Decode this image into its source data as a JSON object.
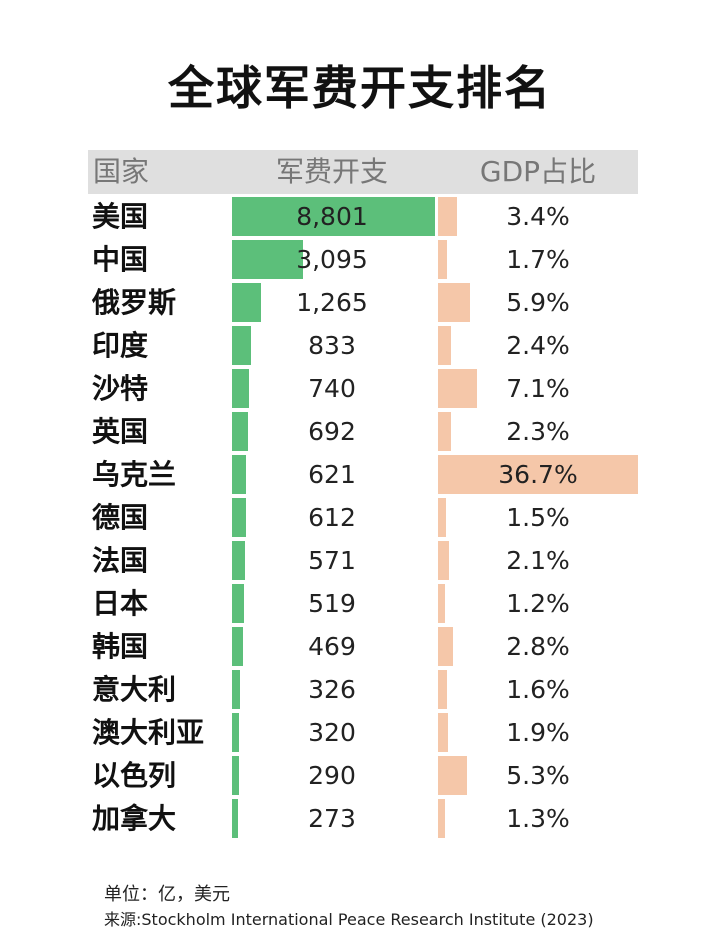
{
  "title": "全球军费开支排名",
  "chart_data": {
    "type": "table",
    "title": "全球军费开支排名",
    "columns": [
      "国家",
      "军费开支",
      "GDP占比"
    ],
    "rows": [
      {
        "country": "美国",
        "spend": 8801,
        "spend_label": "8,801",
        "gdp": 3.4,
        "gdp_label": "3.4%"
      },
      {
        "country": "中国",
        "spend": 3095,
        "spend_label": "3,095",
        "gdp": 1.7,
        "gdp_label": "1.7%"
      },
      {
        "country": "俄罗斯",
        "spend": 1265,
        "spend_label": "1,265",
        "gdp": 5.9,
        "gdp_label": "5.9%"
      },
      {
        "country": "印度",
        "spend": 833,
        "spend_label": "833",
        "gdp": 2.4,
        "gdp_label": "2.4%"
      },
      {
        "country": "沙特",
        "spend": 740,
        "spend_label": "740",
        "gdp": 7.1,
        "gdp_label": "7.1%"
      },
      {
        "country": "英国",
        "spend": 692,
        "spend_label": "692",
        "gdp": 2.3,
        "gdp_label": "2.3%"
      },
      {
        "country": "乌克兰",
        "spend": 621,
        "spend_label": "621",
        "gdp": 36.7,
        "gdp_label": "36.7%"
      },
      {
        "country": "德国",
        "spend": 612,
        "spend_label": "612",
        "gdp": 1.5,
        "gdp_label": "1.5%"
      },
      {
        "country": "法国",
        "spend": 571,
        "spend_label": "571",
        "gdp": 2.1,
        "gdp_label": "2.1%"
      },
      {
        "country": "日本",
        "spend": 519,
        "spend_label": "519",
        "gdp": 1.2,
        "gdp_label": "1.2%"
      },
      {
        "country": "韩国",
        "spend": 469,
        "spend_label": "469",
        "gdp": 2.8,
        "gdp_label": "2.8%"
      },
      {
        "country": "意大利",
        "spend": 326,
        "spend_label": "326",
        "gdp": 1.6,
        "gdp_label": "1.6%"
      },
      {
        "country": "澳大利亚",
        "spend": 320,
        "spend_label": "320",
        "gdp": 1.9,
        "gdp_label": "1.9%"
      },
      {
        "country": "以色列",
        "spend": 290,
        "spend_label": "290",
        "gdp": 5.3,
        "gdp_label": "5.3%"
      },
      {
        "country": "加拿大",
        "spend": 273,
        "spend_label": "273",
        "gdp": 1.3,
        "gdp_label": "1.3%"
      }
    ],
    "spend_max": 8801,
    "gdp_max": 36.7,
    "colors": {
      "spend_bar": "#5cbf7a",
      "gdp_bar": "#f5c7a9",
      "header_bg": "#dfdfdf"
    }
  },
  "footer": {
    "unit": "单位：亿，美元",
    "source": "来源:Stockholm International Peace Research Institute (2023)"
  }
}
